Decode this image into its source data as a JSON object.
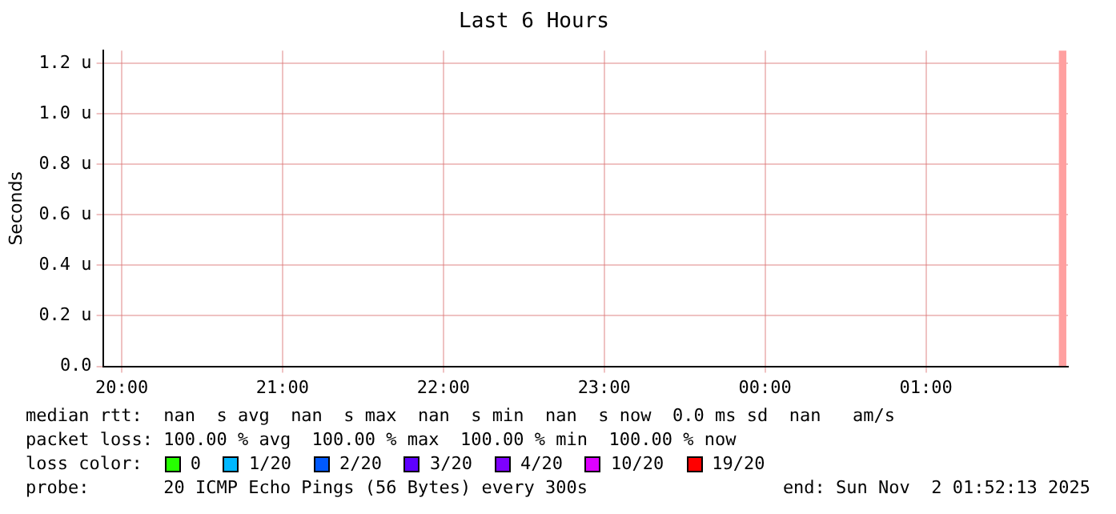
{
  "chart_data": {
    "type": "line",
    "title": "Last 6 Hours",
    "ylabel": "Seconds",
    "xlim": [
      "2025-11-01T19:53",
      "2025-11-02T01:53"
    ],
    "xticks": [
      {
        "value": "2025-11-01T20:00",
        "label": "20:00"
      },
      {
        "value": "2025-11-01T21:00",
        "label": "21:00"
      },
      {
        "value": "2025-11-01T22:00",
        "label": "22:00"
      },
      {
        "value": "2025-11-01T23:00",
        "label": "23:00"
      },
      {
        "value": "2025-11-02T00:00",
        "label": "00:00"
      },
      {
        "value": "2025-11-02T01:00",
        "label": "01:00"
      }
    ],
    "ylim": [
      0,
      1.25
    ],
    "yticks": [
      {
        "value": 0,
        "label": "0.0"
      },
      {
        "value": 0.2,
        "label": "0.2 u"
      },
      {
        "value": 0.4,
        "label": "0.4 u"
      },
      {
        "value": 0.6,
        "label": "0.6 u"
      },
      {
        "value": 0.8,
        "label": "0.8 u"
      },
      {
        "value": 1.0,
        "label": "1.0 u"
      },
      {
        "value": 1.2,
        "label": "1.2 u"
      }
    ],
    "grid": true,
    "legend": "bottom",
    "legend_title": "loss color:",
    "series": [
      {
        "type": "bar",
        "color": "#ffa0a0",
        "x": [
          "2025-11-02T01:51"
        ],
        "values": [
          1.25
        ]
      },
      {
        "name": "0",
        "color": "#26ff00"
      },
      {
        "name": "1/20",
        "color": "#00b8ff"
      },
      {
        "name": "2/20",
        "color": "#0059ff"
      },
      {
        "name": "3/20",
        "color": "#5e00ff"
      },
      {
        "name": "4/20",
        "color": "#7e00ff"
      },
      {
        "name": "10/20",
        "color": "#dd00ff"
      },
      {
        "name": "19/20",
        "color": "#ff0000"
      }
    ],
    "annotations": [
      "median rtt:  nan  s avg  nan  s max  nan  s min  nan  s now  0.0 ms sd  nan   am/s",
      "packet loss: 100.00 % avg  100.00 % max  100.00 % min  100.00 % now",
      "probe:       20 ICMP Echo Pings (56 Bytes) every 300s",
      "end: Sun Nov  2 01:52:13 2025"
    ]
  }
}
